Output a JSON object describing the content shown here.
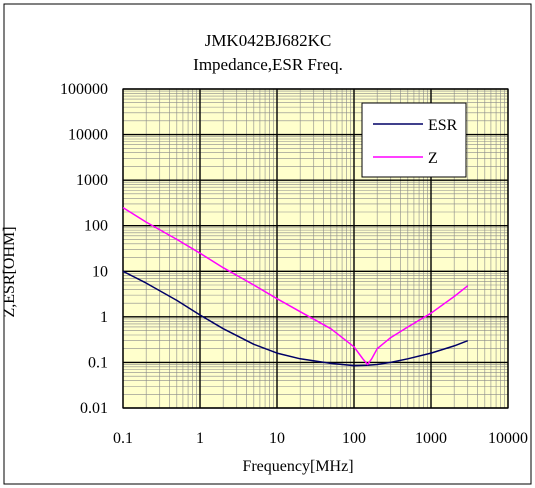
{
  "chart_data": {
    "type": "line",
    "title": "JMK042BJ682KC",
    "subtitle": "Impedance,ESR  Freq.",
    "xlabel": "Frequency[MHz]",
    "ylabel": "Z,ESR[OHM]",
    "x_scale": "log",
    "y_scale": "log",
    "xlim": [
      0.1,
      10000
    ],
    "ylim": [
      0.01,
      100000
    ],
    "x_ticks": [
      0.1,
      1,
      10,
      100,
      1000,
      10000
    ],
    "x_tick_labels": [
      "0.1",
      "1",
      "10",
      "100",
      "1000",
      "10000"
    ],
    "y_ticks": [
      0.01,
      0.1,
      1,
      10,
      100,
      1000,
      10000,
      100000
    ],
    "y_tick_labels": [
      "0.01",
      "0.1",
      "1",
      "10",
      "100",
      "1000",
      "10000",
      "100000"
    ],
    "grid": true,
    "plot_background": "#ffffcc",
    "legend_position": "top-right",
    "series": [
      {
        "name": "ESR",
        "color": "#000066",
        "x": [
          0.1,
          0.2,
          0.5,
          1,
          2,
          5,
          10,
          20,
          50,
          100,
          150,
          200,
          300,
          500,
          1000,
          2000,
          3000
        ],
        "y": [
          10,
          5.5,
          2.3,
          1.1,
          0.55,
          0.25,
          0.16,
          0.12,
          0.095,
          0.085,
          0.087,
          0.09,
          0.1,
          0.12,
          0.16,
          0.23,
          0.3
        ]
      },
      {
        "name": "Z",
        "color": "#ff00ff",
        "x": [
          0.1,
          0.2,
          0.5,
          1,
          2,
          5,
          10,
          20,
          50,
          100,
          130,
          150,
          170,
          200,
          300,
          500,
          1000,
          2000,
          3000
        ],
        "y": [
          250,
          120,
          50,
          25,
          12,
          5,
          2.5,
          1.3,
          0.55,
          0.22,
          0.12,
          0.09,
          0.12,
          0.2,
          0.35,
          0.6,
          1.2,
          2.8,
          4.8
        ]
      }
    ]
  }
}
